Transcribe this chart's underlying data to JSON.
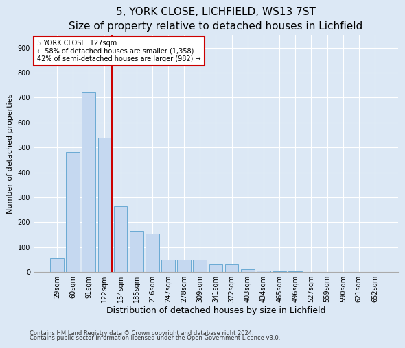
{
  "title1": "5, YORK CLOSE, LICHFIELD, WS13 7ST",
  "title2": "Size of property relative to detached houses in Lichfield",
  "xlabel": "Distribution of detached houses by size in Lichfield",
  "ylabel": "Number of detached properties",
  "categories": [
    "29sqm",
    "60sqm",
    "91sqm",
    "122sqm",
    "154sqm",
    "185sqm",
    "216sqm",
    "247sqm",
    "278sqm",
    "309sqm",
    "341sqm",
    "372sqm",
    "403sqm",
    "434sqm",
    "465sqm",
    "496sqm",
    "527sqm",
    "559sqm",
    "590sqm",
    "621sqm",
    "652sqm"
  ],
  "values": [
    55,
    480,
    720,
    540,
    265,
    165,
    155,
    50,
    50,
    50,
    30,
    30,
    10,
    5,
    3,
    2,
    1,
    0,
    0,
    0,
    0
  ],
  "bar_color": "#c5d8f0",
  "bar_edge_color": "#6aaad4",
  "annotation_label": "5 YORK CLOSE: 127sqm",
  "annotation_line1": "← 58% of detached houses are smaller (1,358)",
  "annotation_line2": "42% of semi-detached houses are larger (982) →",
  "annotation_box_color": "#ffffff",
  "annotation_box_edge": "#cc0000",
  "vline_color": "#cc0000",
  "vline_x": 3.45,
  "ylim": [
    0,
    950
  ],
  "yticks": [
    0,
    100,
    200,
    300,
    400,
    500,
    600,
    700,
    800,
    900
  ],
  "footnote1": "Contains HM Land Registry data © Crown copyright and database right 2024.",
  "footnote2": "Contains public sector information licensed under the Open Government Licence v3.0.",
  "background_color": "#dce8f5",
  "plot_bg_color": "#dce8f5",
  "title1_fontsize": 11,
  "title2_fontsize": 9,
  "xlabel_fontsize": 9,
  "ylabel_fontsize": 8,
  "tick_fontsize": 7,
  "annot_fontsize": 7
}
